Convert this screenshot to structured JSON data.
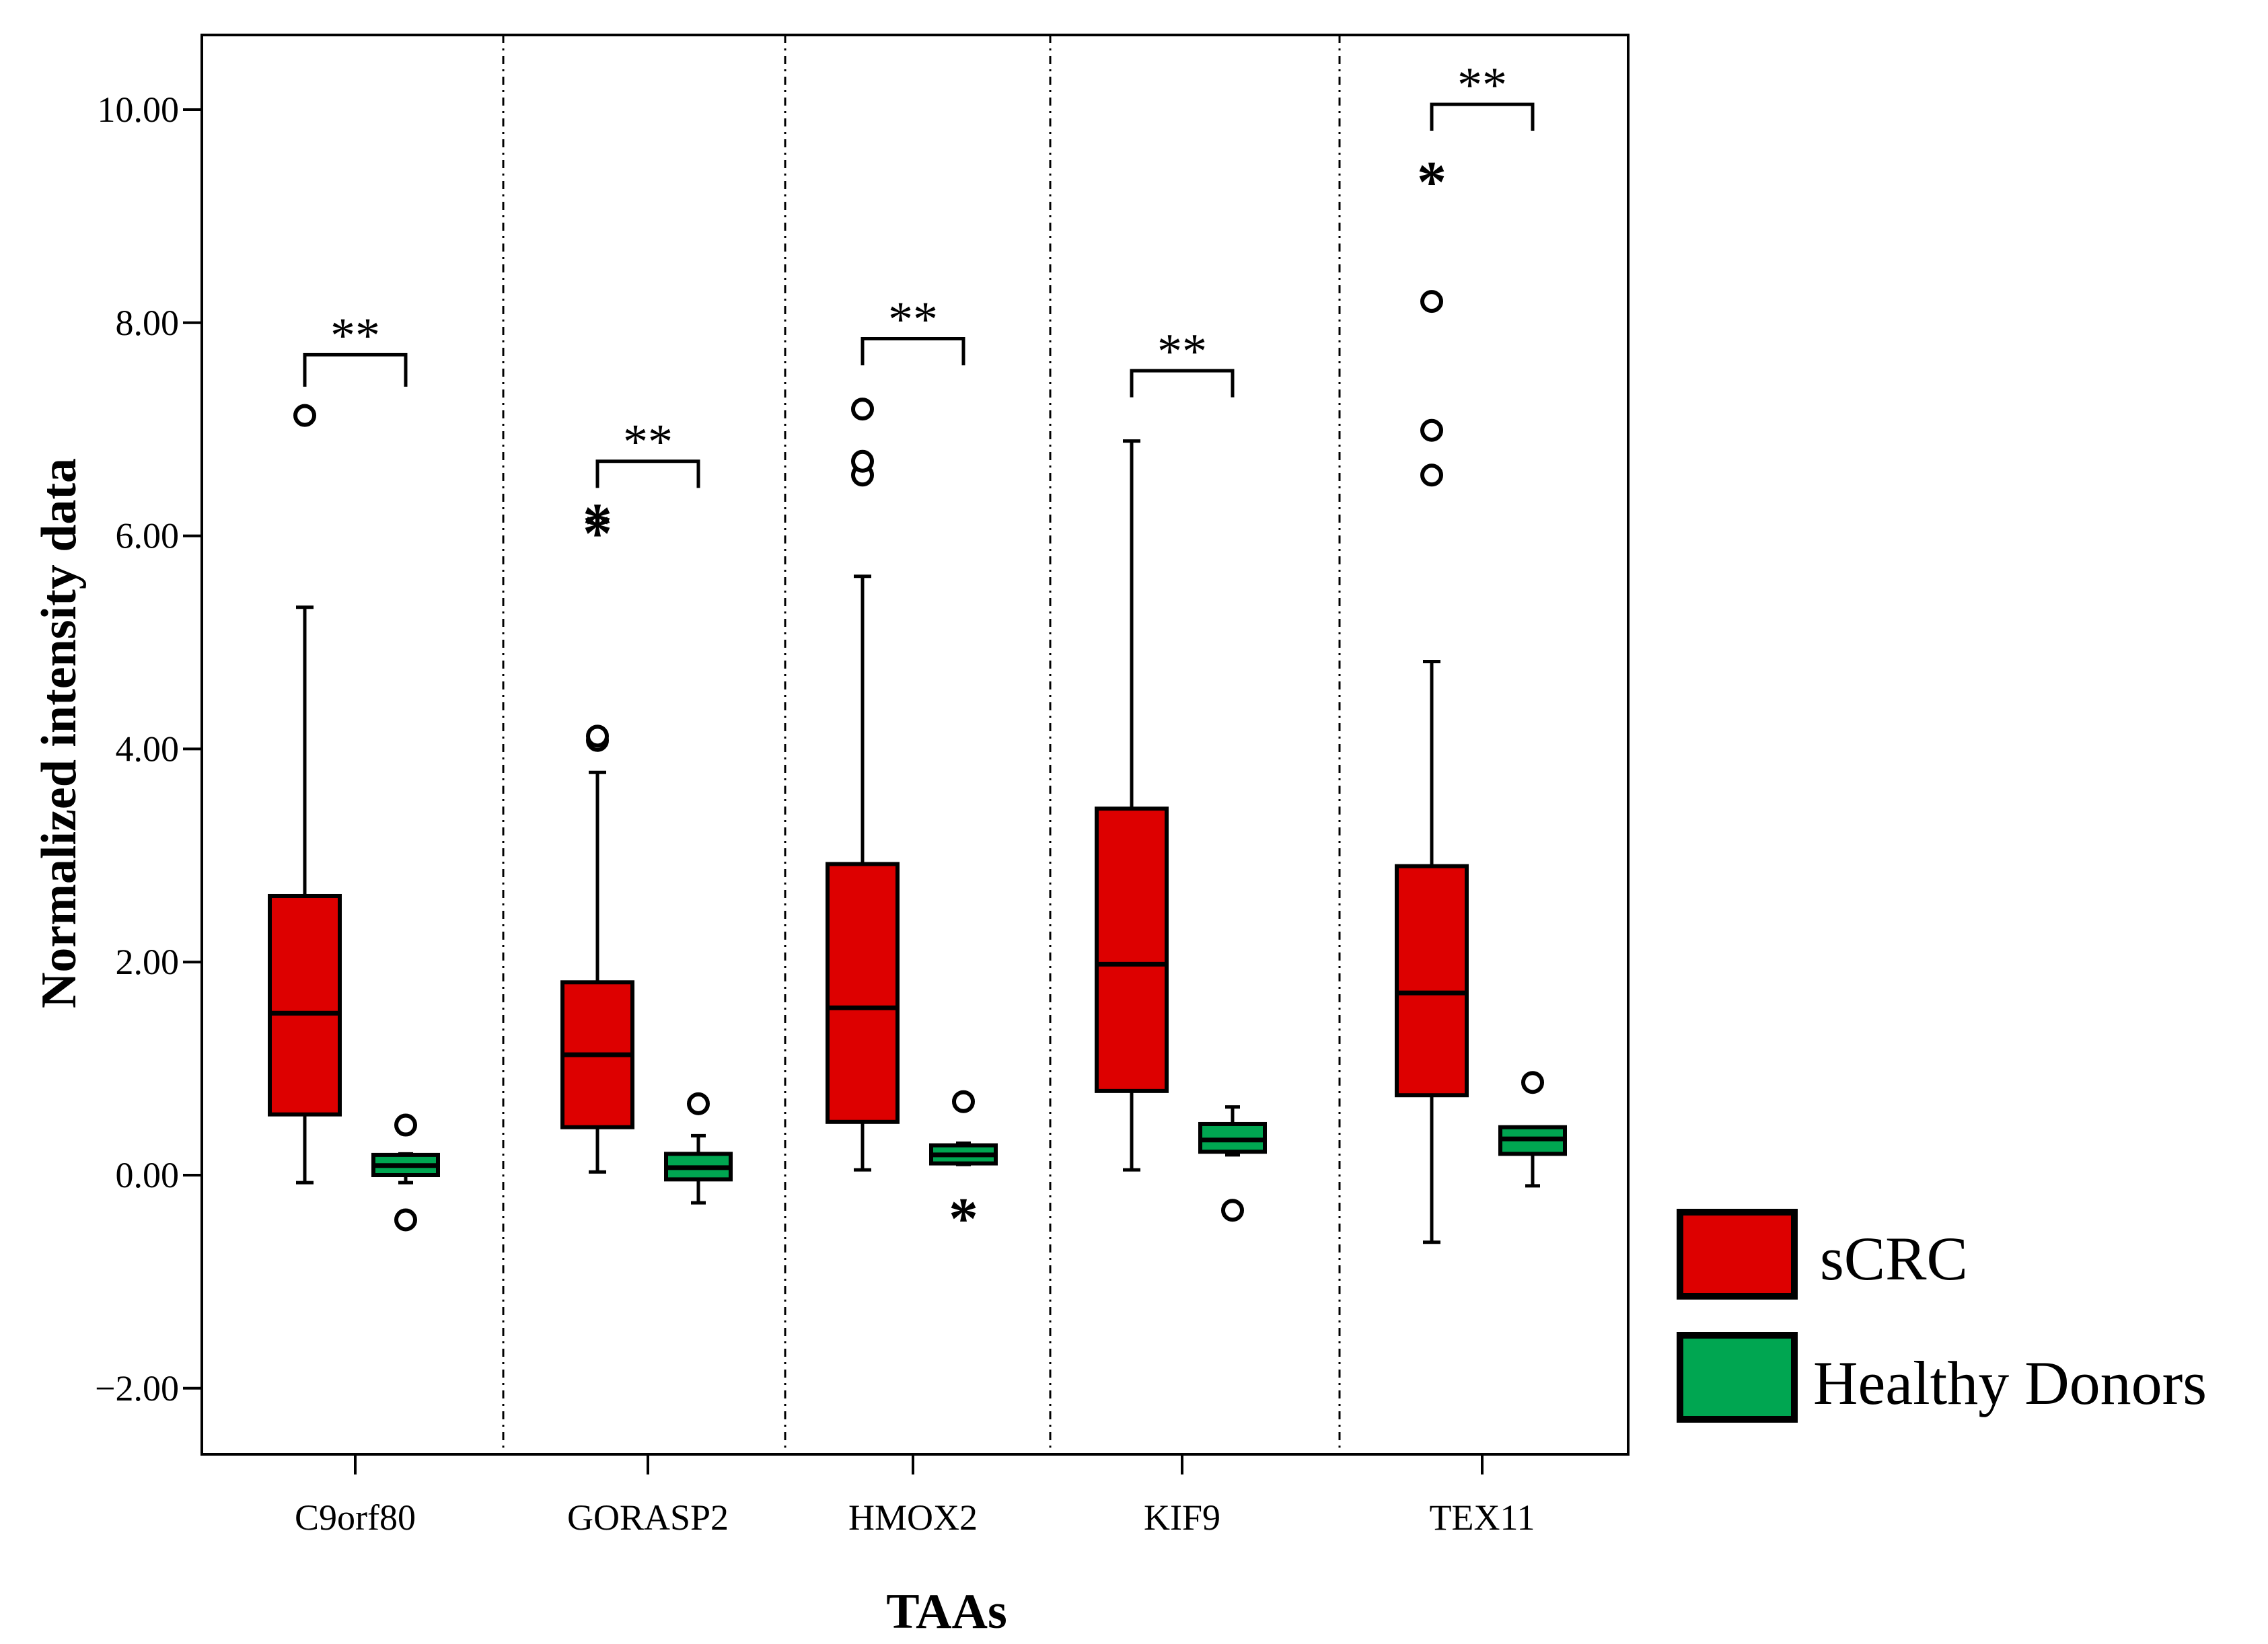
{
  "chart_data": {
    "type": "boxplot",
    "title": "",
    "xlabel": "TAAs",
    "ylabel": "Normalized intensity data",
    "ylim": [
      -2.7,
      10.7
    ],
    "yticks": [
      -2,
      0,
      2,
      4,
      6,
      8,
      10
    ],
    "ytick_labels": [
      "−2.00",
      "0.00",
      "2.00",
      "4.00",
      "6.00",
      "8.00",
      "10.00"
    ],
    "grid": false,
    "legend_position": "right",
    "categories": [
      "C9orf80",
      "GORASP2",
      "HMOX2",
      "KIF9",
      "TEX11"
    ],
    "series": [
      {
        "name": "sCRC",
        "color": "#dd0000",
        "boxes": [
          {
            "min": -0.07,
            "q1": 0.57,
            "median": 1.52,
            "q3": 2.62,
            "max": 5.33,
            "outliers": [
              {
                "value": 7.13,
                "marker": "circle"
              }
            ]
          },
          {
            "min": 0.03,
            "q1": 0.45,
            "median": 1.13,
            "q3": 1.81,
            "max": 3.78,
            "outliers": [
              {
                "value": 4.08,
                "marker": "circle"
              },
              {
                "value": 4.12,
                "marker": "circle"
              },
              {
                "value": 6.05,
                "marker": "star"
              },
              {
                "value": 6.14,
                "marker": "star"
              }
            ]
          },
          {
            "min": 0.05,
            "q1": 0.5,
            "median": 1.57,
            "q3": 2.92,
            "max": 5.62,
            "outliers": [
              {
                "value": 6.57,
                "marker": "circle"
              },
              {
                "value": 6.7,
                "marker": "circle"
              },
              {
                "value": 7.19,
                "marker": "circle"
              }
            ]
          },
          {
            "min": 0.05,
            "q1": 0.79,
            "median": 1.98,
            "q3": 3.44,
            "max": 6.89,
            "outliers": []
          },
          {
            "min": -0.63,
            "q1": 0.75,
            "median": 1.71,
            "q3": 2.9,
            "max": 4.82,
            "outliers": [
              {
                "value": 6.57,
                "marker": "circle"
              },
              {
                "value": 6.99,
                "marker": "circle"
              },
              {
                "value": 8.2,
                "marker": "circle"
              },
              {
                "value": 9.35,
                "marker": "star"
              }
            ]
          }
        ]
      },
      {
        "name": "Healthy Donors",
        "color": "#00a651",
        "boxes": [
          {
            "min": -0.07,
            "q1": 0.0,
            "median": 0.09,
            "q3": 0.19,
            "max": 0.2,
            "outliers": [
              {
                "value": 0.47,
                "marker": "circle"
              },
              {
                "value": -0.42,
                "marker": "circle"
              }
            ]
          },
          {
            "min": -0.26,
            "q1": -0.04,
            "median": 0.07,
            "q3": 0.2,
            "max": 0.37,
            "outliers": [
              {
                "value": 0.67,
                "marker": "circle"
              }
            ]
          },
          {
            "min": 0.1,
            "q1": 0.11,
            "median": 0.19,
            "q3": 0.28,
            "max": 0.3,
            "outliers": [
              {
                "value": 0.69,
                "marker": "circle"
              },
              {
                "value": -0.38,
                "marker": "star"
              }
            ]
          },
          {
            "min": 0.19,
            "q1": 0.22,
            "median": 0.33,
            "q3": 0.48,
            "max": 0.64,
            "outliers": [
              {
                "value": -0.33,
                "marker": "circle"
              }
            ]
          },
          {
            "min": -0.1,
            "q1": 0.2,
            "median": 0.34,
            "q3": 0.45,
            "max": 0.45,
            "outliers": [
              {
                "value": 0.87,
                "marker": "circle"
              }
            ]
          }
        ]
      }
    ],
    "significance": [
      {
        "category": "C9orf80",
        "label": "**",
        "bracket_y": 7.7,
        "bracket_drop": 7.4
      },
      {
        "category": "GORASP2",
        "label": "**",
        "bracket_y": 6.7,
        "bracket_drop": 6.45
      },
      {
        "category": "HMOX2",
        "label": "**",
        "bracket_y": 7.85,
        "bracket_drop": 7.6
      },
      {
        "category": "KIF9",
        "label": "**",
        "bracket_y": 7.55,
        "bracket_drop": 7.3
      },
      {
        "category": "TEX11",
        "label": "**",
        "bracket_y": 10.05,
        "bracket_drop": 9.8
      }
    ]
  }
}
